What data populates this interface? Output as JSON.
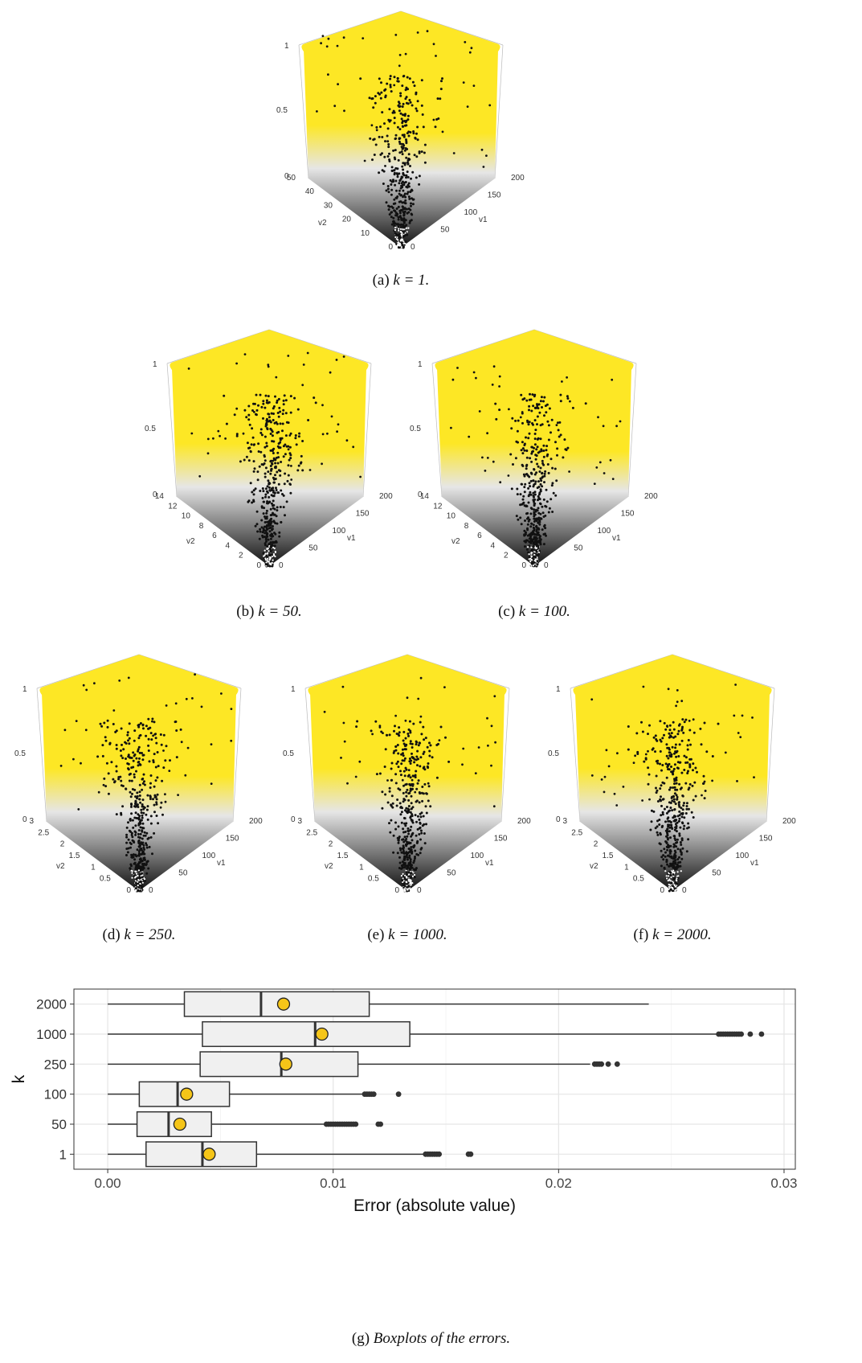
{
  "cube_axes": {
    "z_ticks": [
      "0",
      "0.5",
      "1"
    ],
    "v1_ticks": [
      "0",
      "50",
      "100",
      "150",
      "200"
    ],
    "v1_label": "v1",
    "v2_label": "v2"
  },
  "surfaces": [
    {
      "id": "a",
      "caption_prefix": "(a)",
      "caption_math": "k = 1.",
      "v2_ticks": [
        "0",
        "10",
        "20",
        "30",
        "40",
        "50"
      ],
      "colors": {
        "high": "#fde725",
        "mid": "#e6e6e6",
        "low": "#111111"
      }
    },
    {
      "id": "b",
      "caption_prefix": "(b)",
      "caption_math": "k = 50.",
      "v2_ticks": [
        "0",
        "2",
        "4",
        "6",
        "8",
        "10",
        "12",
        "14"
      ],
      "colors": {
        "high": "#fde725",
        "mid": "#e6e6e6",
        "low": "#111111"
      }
    },
    {
      "id": "c",
      "caption_prefix": "(c)",
      "caption_math": "k = 100.",
      "v2_ticks": [
        "0",
        "2",
        "4",
        "6",
        "8",
        "10",
        "12",
        "14"
      ],
      "colors": {
        "high": "#fde725",
        "mid": "#e6e6e6",
        "low": "#111111"
      }
    },
    {
      "id": "d",
      "caption_prefix": "(d)",
      "caption_math": "k = 250.",
      "v2_ticks": [
        "0",
        "0.5",
        "1",
        "1.5",
        "2",
        "2.5",
        "3"
      ],
      "colors": {
        "high": "#fde725",
        "mid": "#e6e6e6",
        "low": "#111111"
      }
    },
    {
      "id": "e",
      "caption_prefix": "(e)",
      "caption_math": "k = 1000.",
      "v2_ticks": [
        "0",
        "0.5",
        "1",
        "1.5",
        "2",
        "2.5",
        "3"
      ],
      "colors": {
        "high": "#fde725",
        "mid": "#e6e6e6",
        "low": "#111111"
      }
    },
    {
      "id": "f",
      "caption_prefix": "(f)",
      "caption_math": "k = 2000.",
      "v2_ticks": [
        "0",
        "0.5",
        "1",
        "1.5",
        "2",
        "2.5",
        "3"
      ],
      "colors": {
        "high": "#fde725",
        "mid": "#e6e6e6",
        "low": "#111111"
      }
    }
  ],
  "chart_data": {
    "type": "boxplot",
    "orientation": "horizontal",
    "xlabel": "Error (absolute value)",
    "ylabel": "k",
    "xlim": [
      -0.0015,
      0.0305
    ],
    "x_ticks": [
      "0.00",
      "0.01",
      "0.02",
      "0.03"
    ],
    "x_tick_values": [
      0.0,
      0.01,
      0.02,
      0.03
    ],
    "grid": true,
    "mean_marker_color": "#f5c518",
    "box_fill": "#f0f0f0",
    "caption_prefix": "(g)",
    "caption": "Boxplots of the errors.",
    "categories": [
      "1",
      "50",
      "100",
      "250",
      "1000",
      "2000"
    ],
    "boxes": [
      {
        "k": "1",
        "min": 0.0,
        "q1": 0.0017,
        "median": 0.0042,
        "q3": 0.0066,
        "whisker_max": 0.014,
        "mean": 0.0045,
        "outliers": [
          0.0141,
          0.0142,
          0.0143,
          0.0144,
          0.0145,
          0.0146,
          0.0147,
          0.016,
          0.0161
        ]
      },
      {
        "k": "50",
        "min": 0.0,
        "q1": 0.0013,
        "median": 0.0027,
        "q3": 0.0046,
        "whisker_max": 0.0096,
        "mean": 0.0032,
        "outliers": [
          0.0097,
          0.0098,
          0.0099,
          0.01,
          0.0101,
          0.0102,
          0.0103,
          0.0104,
          0.0105,
          0.0106,
          0.0107,
          0.0108,
          0.0109,
          0.011,
          0.012,
          0.0121
        ]
      },
      {
        "k": "100",
        "min": 0.0,
        "q1": 0.0014,
        "median": 0.0031,
        "q3": 0.0054,
        "whisker_max": 0.0113,
        "mean": 0.0035,
        "outliers": [
          0.0114,
          0.0115,
          0.0116,
          0.0117,
          0.0118,
          0.0129
        ]
      },
      {
        "k": "250",
        "min": 0.0,
        "q1": 0.0041,
        "median": 0.0077,
        "q3": 0.0111,
        "whisker_max": 0.0214,
        "mean": 0.0079,
        "outliers": [
          0.0216,
          0.0217,
          0.0218,
          0.0219,
          0.0222,
          0.0226
        ]
      },
      {
        "k": "1000",
        "min": 0.0,
        "q1": 0.0042,
        "median": 0.0092,
        "q3": 0.0134,
        "whisker_max": 0.027,
        "mean": 0.0095,
        "outliers": [
          0.0271,
          0.0272,
          0.0273,
          0.0274,
          0.0275,
          0.0276,
          0.0277,
          0.0278,
          0.0279,
          0.028,
          0.0281,
          0.0285,
          0.029
        ]
      },
      {
        "k": "2000",
        "min": 0.0,
        "q1": 0.0034,
        "median": 0.0068,
        "q3": 0.0116,
        "whisker_max": 0.024,
        "mean": 0.0078,
        "outliers": []
      }
    ]
  }
}
